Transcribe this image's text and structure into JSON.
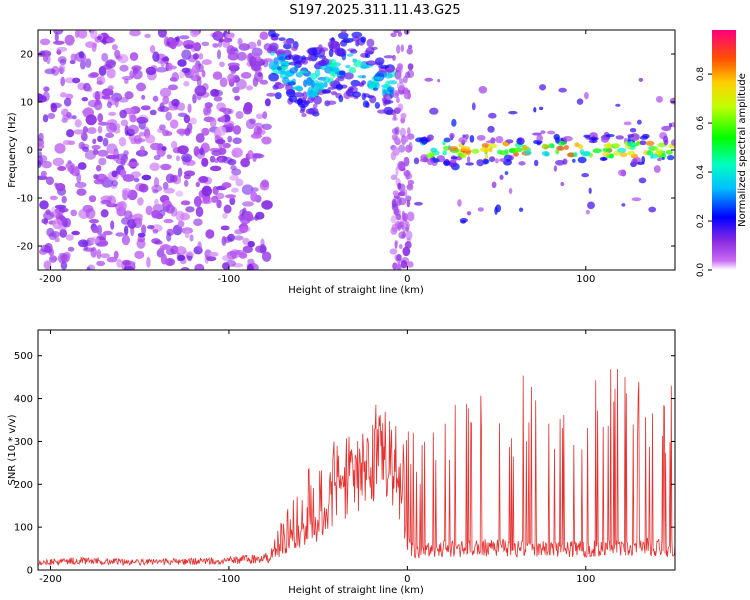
{
  "title": "S197.2025.311.11.43.G25",
  "colors": {
    "snr_line": "#e8302e",
    "axis": "#000000",
    "background": "#ffffff"
  },
  "chart_data": [
    {
      "type": "heatmap",
      "title": "S197.2025.311.11.43.G25",
      "xlabel": "Height of straight line (km)",
      "ylabel": "Frequency (Hz)",
      "xlim": [
        -207,
        150
      ],
      "ylim": [
        -25,
        25
      ],
      "xticks": [
        -200,
        -100,
        0,
        100
      ],
      "yticks": [
        -20,
        -10,
        0,
        10,
        20
      ],
      "colorbar": {
        "label": "Normalized spectral amplitude",
        "range": [
          0.0,
          0.98
        ],
        "ticks": [
          0.0,
          0.2,
          0.4,
          0.6,
          0.8
        ],
        "colormap": "rainbow"
      },
      "features": [
        {
          "name": "noise",
          "x_range": [
            -207,
            -78
          ],
          "y_range": [
            -25,
            25
          ],
          "amplitude": 0.12
        },
        {
          "name": "band",
          "x_range": [
            -78,
            -8
          ],
          "y_range": [
            12,
            20
          ],
          "amplitude": 0.35
        },
        {
          "name": "vertical_noise",
          "x_range": [
            -8,
            2
          ],
          "y_range": [
            -25,
            25
          ],
          "amplitude": 0.1
        },
        {
          "name": "line_at_zero",
          "x_range": [
            5,
            150
          ],
          "y_center": 0,
          "amplitude": 0.75
        }
      ]
    },
    {
      "type": "line",
      "xlabel": "Height of straight line (km)",
      "ylabel": "SNR (10 * v/v)",
      "xlim": [
        -207,
        150
      ],
      "ylim": [
        0,
        560
      ],
      "xticks": [
        -200,
        -100,
        0,
        100
      ],
      "yticks": [
        0,
        100,
        200,
        300,
        400,
        500
      ],
      "series": [
        {
          "name": "SNR",
          "x": [
            -207,
            -180,
            -150,
            -120,
            -100,
            -80,
            -70,
            -60,
            -50,
            -40,
            -30,
            -20,
            -10,
            0,
            5,
            10,
            20,
            30,
            40,
            50,
            60,
            80,
            100,
            110,
            120,
            130,
            150
          ],
          "values": [
            18,
            22,
            18,
            20,
            22,
            28,
            50,
            85,
            110,
            160,
            210,
            240,
            290,
            60,
            40,
            45,
            50,
            48,
            52,
            55,
            50,
            52,
            48,
            50,
            52,
            55,
            50
          ],
          "spike_peak_values": [
            0,
            0,
            0,
            0,
            0,
            0,
            120,
            200,
            260,
            300,
            320,
            380,
            350,
            310,
            320,
            340,
            360,
            380,
            420,
            430,
            440,
            460,
            470,
            480,
            450,
            440,
            430
          ]
        }
      ]
    }
  ]
}
